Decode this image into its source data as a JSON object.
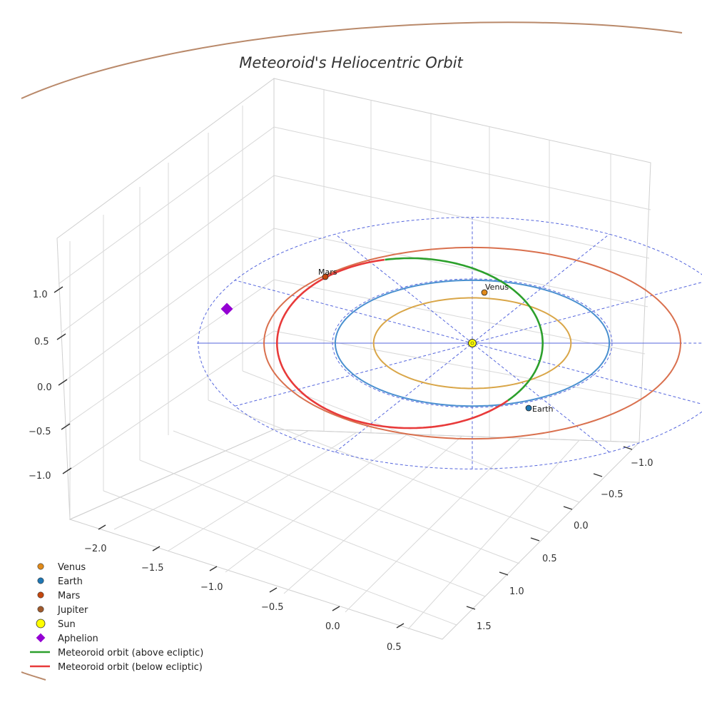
{
  "chart_data": {
    "type": "scatter3d",
    "title": "Meteoroid's Heliocentric Orbit",
    "xlabel": "",
    "ylabel": "",
    "zlabel": "",
    "x_ticks": [
      "−2.0",
      "−1.5",
      "−1.0",
      "−0.5",
      "0.0",
      "0.5"
    ],
    "y_ticks": [
      "−1.0",
      "−0.5",
      "0.0",
      "0.5",
      "1.0",
      "1.5"
    ],
    "z_ticks": [
      "1.0",
      "0.5",
      "0.0",
      "−0.5",
      "−1.0"
    ],
    "planets": [
      {
        "name": "Venus",
        "label": "Venus",
        "radius_au": 0.72,
        "color": "#d9a648",
        "marker_color": "#e08a1a",
        "phase_deg": 95
      },
      {
        "name": "Earth",
        "label": "Earth",
        "radius_au": 1.0,
        "color": "#4a90d0",
        "marker_color": "#1f77b4",
        "phase_deg": 290
      },
      {
        "name": "Mars",
        "label": "Mars",
        "radius_au": 1.52,
        "color": "#d9704e",
        "marker_color": "#c4470e",
        "phase_deg": 140
      },
      {
        "name": "Jupiter",
        "label": "",
        "radius_au": 5.2,
        "color": "#b9896a",
        "marker_color": "#a05a2c"
      }
    ],
    "sun": {
      "label": "Sun",
      "color": "#ffff00"
    },
    "aphelion": {
      "label": "Aphelion",
      "color": "#9400d3"
    },
    "meteoroid": {
      "above_label": "Meteoroid orbit (above ecliptic)",
      "below_label": "Meteoroid orbit (below ecliptic)",
      "above_color": "#2ca02c",
      "below_color": "#e83a3a",
      "semi_major_au": 1.9,
      "eccentricity": 0.47
    },
    "legend": [
      {
        "label": "Venus",
        "type": "dot",
        "color": "#e08a1a"
      },
      {
        "label": "Earth",
        "type": "dot",
        "color": "#1f77b4"
      },
      {
        "label": "Mars",
        "type": "dot",
        "color": "#c4470e"
      },
      {
        "label": "Jupiter",
        "type": "dot",
        "color": "#a05a2c"
      },
      {
        "label": "Sun",
        "type": "sun",
        "color": "#ffff00"
      },
      {
        "label": "Aphelion",
        "type": "diamond",
        "color": "#9400d3"
      },
      {
        "label": "Meteoroid orbit (above ecliptic)",
        "type": "line",
        "color": "#2ca02c"
      },
      {
        "label": "Meteoroid orbit (below ecliptic)",
        "type": "line",
        "color": "#e83a3a"
      }
    ]
  }
}
